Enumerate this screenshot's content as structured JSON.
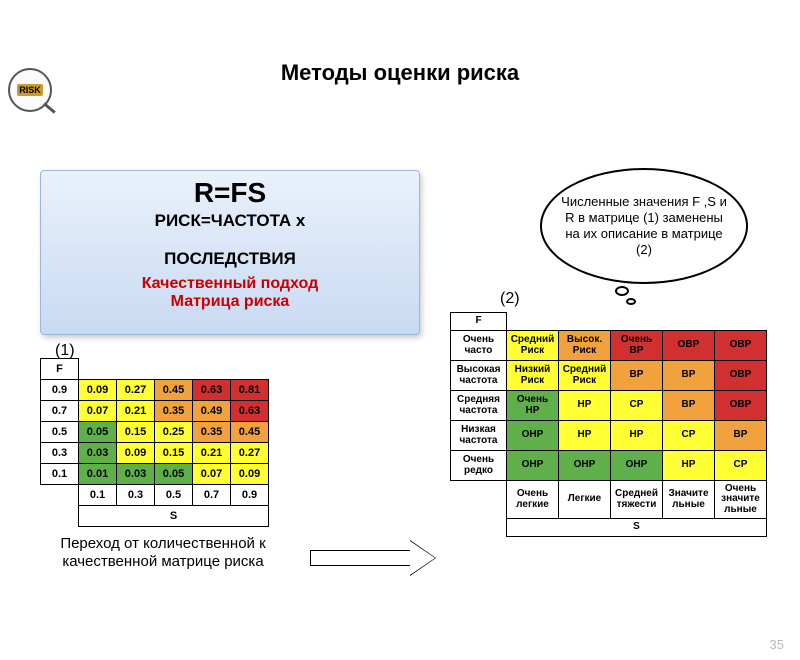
{
  "logo_text": "RISK",
  "title": "Методы оценки риска",
  "formula_main": "R=FS",
  "formula_sub": "РИСК=ЧАСТОТА х",
  "formula_sub2": "ПОСЛЕДСТВИЯ",
  "formula_red1": "Качественный подход",
  "formula_red2": "Матрица риска",
  "label1": "(1)",
  "label2": "(2)",
  "bubble": "Численные значения F ,S и R в матрице (1) заменены на их описание в матрице (2)",
  "caption1": "Переход от количественной к качественной матрице риска",
  "page_number": "35",
  "colors": {
    "green": "#5fb04a",
    "yellow": "#ffff33",
    "orange": "#f2a23c",
    "red": "#d23030",
    "white": "#ffffff"
  },
  "matrix1": {
    "axis_F": "F",
    "axis_S": "S",
    "f_values": [
      "0.9",
      "0.7",
      "0.5",
      "0.3",
      "0.1"
    ],
    "s_values": [
      "0.1",
      "0.3",
      "0.5",
      "0.7",
      "0.9"
    ],
    "cells": [
      [
        {
          "v": "0.09",
          "c": "yellow"
        },
        {
          "v": "0.27",
          "c": "yellow"
        },
        {
          "v": "0.45",
          "c": "orange"
        },
        {
          "v": "0.63",
          "c": "red"
        },
        {
          "v": "0.81",
          "c": "red"
        }
      ],
      [
        {
          "v": "0.07",
          "c": "yellow"
        },
        {
          "v": "0.21",
          "c": "yellow"
        },
        {
          "v": "0.35",
          "c": "orange"
        },
        {
          "v": "0.49",
          "c": "orange"
        },
        {
          "v": "0.63",
          "c": "red"
        }
      ],
      [
        {
          "v": "0.05",
          "c": "green"
        },
        {
          "v": "0.15",
          "c": "yellow"
        },
        {
          "v": "0.25",
          "c": "yellow"
        },
        {
          "v": "0.35",
          "c": "orange"
        },
        {
          "v": "0.45",
          "c": "orange"
        }
      ],
      [
        {
          "v": "0.03",
          "c": "green"
        },
        {
          "v": "0.09",
          "c": "yellow"
        },
        {
          "v": "0.15",
          "c": "yellow"
        },
        {
          "v": "0.21",
          "c": "yellow"
        },
        {
          "v": "0.27",
          "c": "yellow"
        }
      ],
      [
        {
          "v": "0.01",
          "c": "green"
        },
        {
          "v": "0.03",
          "c": "green"
        },
        {
          "v": "0.05",
          "c": "green"
        },
        {
          "v": "0.07",
          "c": "yellow"
        },
        {
          "v": "0.09",
          "c": "yellow"
        }
      ]
    ]
  },
  "matrix2": {
    "axis_F": "F",
    "axis_S": "S",
    "row_headers": [
      "Очень часто",
      "Высокая частота",
      "Средняя частота",
      "Низкая частота",
      "Очень редко"
    ],
    "col_headers": [
      "Очень легкие",
      "Легкие",
      "Средней тяжести",
      "Значите льные",
      "Очень значите льные"
    ],
    "cells": [
      [
        {
          "v": "Средний Риск",
          "c": "yellow"
        },
        {
          "v": "Высок. Риск",
          "c": "orange"
        },
        {
          "v": "Очень ВР",
          "c": "red"
        },
        {
          "v": "ОВР",
          "c": "red"
        },
        {
          "v": "ОВР",
          "c": "red"
        }
      ],
      [
        {
          "v": "Низкий Риск",
          "c": "yellow"
        },
        {
          "v": "Средний Риск",
          "c": "yellow"
        },
        {
          "v": "ВР",
          "c": "orange"
        },
        {
          "v": "ВР",
          "c": "orange"
        },
        {
          "v": "ОВР",
          "c": "red"
        }
      ],
      [
        {
          "v": "Очень НР",
          "c": "green"
        },
        {
          "v": "НР",
          "c": "yellow"
        },
        {
          "v": "СР",
          "c": "yellow"
        },
        {
          "v": "ВР",
          "c": "orange"
        },
        {
          "v": "ОВР",
          "c": "red"
        }
      ],
      [
        {
          "v": "ОНР",
          "c": "green"
        },
        {
          "v": "НР",
          "c": "yellow"
        },
        {
          "v": "НР",
          "c": "yellow"
        },
        {
          "v": "СР",
          "c": "yellow"
        },
        {
          "v": "ВР",
          "c": "orange"
        }
      ],
      [
        {
          "v": "ОНР",
          "c": "green"
        },
        {
          "v": "ОНР",
          "c": "green"
        },
        {
          "v": "ОНР",
          "c": "green"
        },
        {
          "v": "НР",
          "c": "yellow"
        },
        {
          "v": "СР",
          "c": "yellow"
        }
      ]
    ]
  }
}
